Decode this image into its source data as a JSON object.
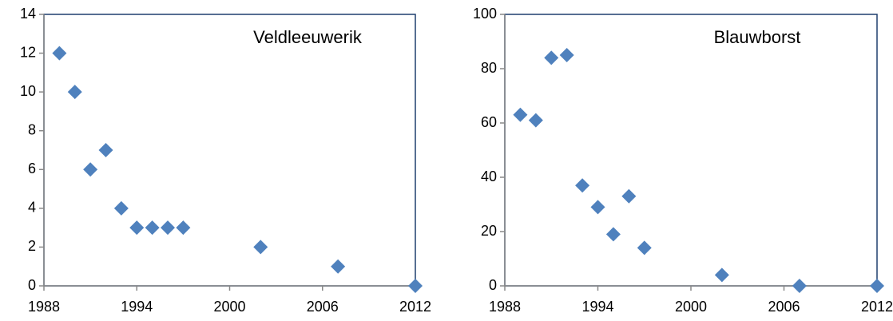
{
  "chart_data": [
    {
      "type": "scatter",
      "title": "Veldleeuwerik",
      "x": [
        1989,
        1990,
        1991,
        1992,
        1993,
        1994,
        1995,
        1996,
        1997,
        2002,
        2007,
        2012
      ],
      "values": [
        12,
        10,
        6,
        7,
        4,
        3,
        3,
        3,
        3,
        2,
        1,
        0
      ],
      "color": "#4f81bd",
      "xlim": [
        1988,
        2012
      ],
      "xticks": [
        1988,
        1994,
        2000,
        2006,
        2012
      ],
      "ylim": [
        0,
        14
      ],
      "yticks": [
        0,
        2,
        4,
        6,
        8,
        10,
        12,
        14
      ]
    },
    {
      "type": "scatter",
      "title": "Blauwborst",
      "x": [
        1989,
        1990,
        1991,
        1992,
        1993,
        1994,
        1995,
        1996,
        1997,
        2002,
        2007,
        2012
      ],
      "values": [
        63,
        61,
        84,
        85,
        37,
        29,
        19,
        33,
        14,
        4,
        0,
        0
      ],
      "color": "#4f81bd",
      "xlim": [
        1988,
        2012
      ],
      "xticks": [
        1988,
        1994,
        2000,
        2006,
        2012
      ],
      "ylim": [
        0,
        100
      ],
      "yticks": [
        0,
        20,
        40,
        60,
        80,
        100
      ]
    }
  ]
}
